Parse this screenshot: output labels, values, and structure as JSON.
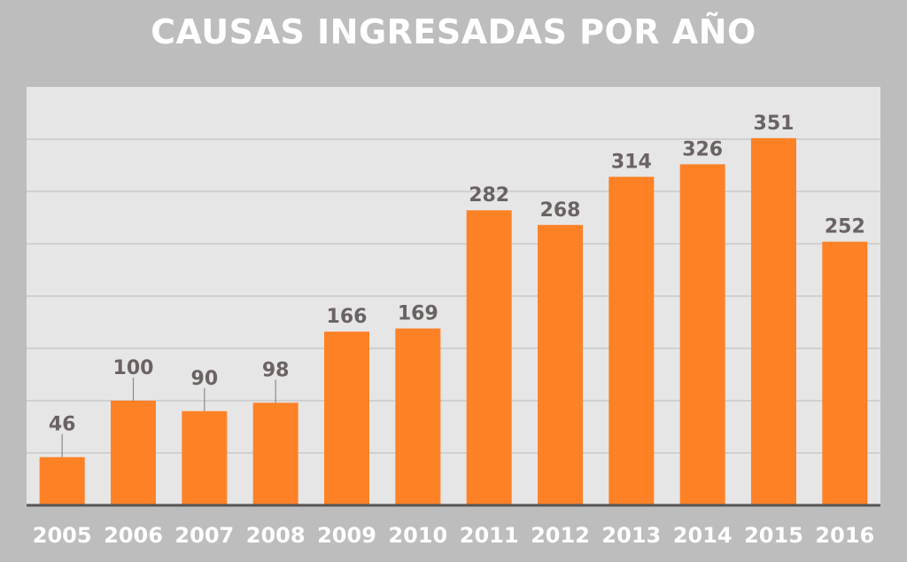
{
  "chart_data": {
    "type": "bar",
    "title": "CAUSAS INGRESADAS POR AÑO",
    "categories": [
      "2005",
      "2006",
      "2007",
      "2008",
      "2009",
      "2010",
      "2011",
      "2012",
      "2013",
      "2014",
      "2015",
      "2016"
    ],
    "values": [
      46,
      100,
      90,
      98,
      166,
      169,
      282,
      268,
      314,
      326,
      351,
      252
    ],
    "xlabel": "",
    "ylabel": "",
    "ylim": [
      0,
      400
    ],
    "grid": true,
    "legend": "none",
    "colors": {
      "bar": "#ff8126",
      "plot_bg": "#e6e6e6",
      "page_bg": "#bdbdbd",
      "value_label": "#6b6363",
      "axis": "#555555"
    }
  }
}
